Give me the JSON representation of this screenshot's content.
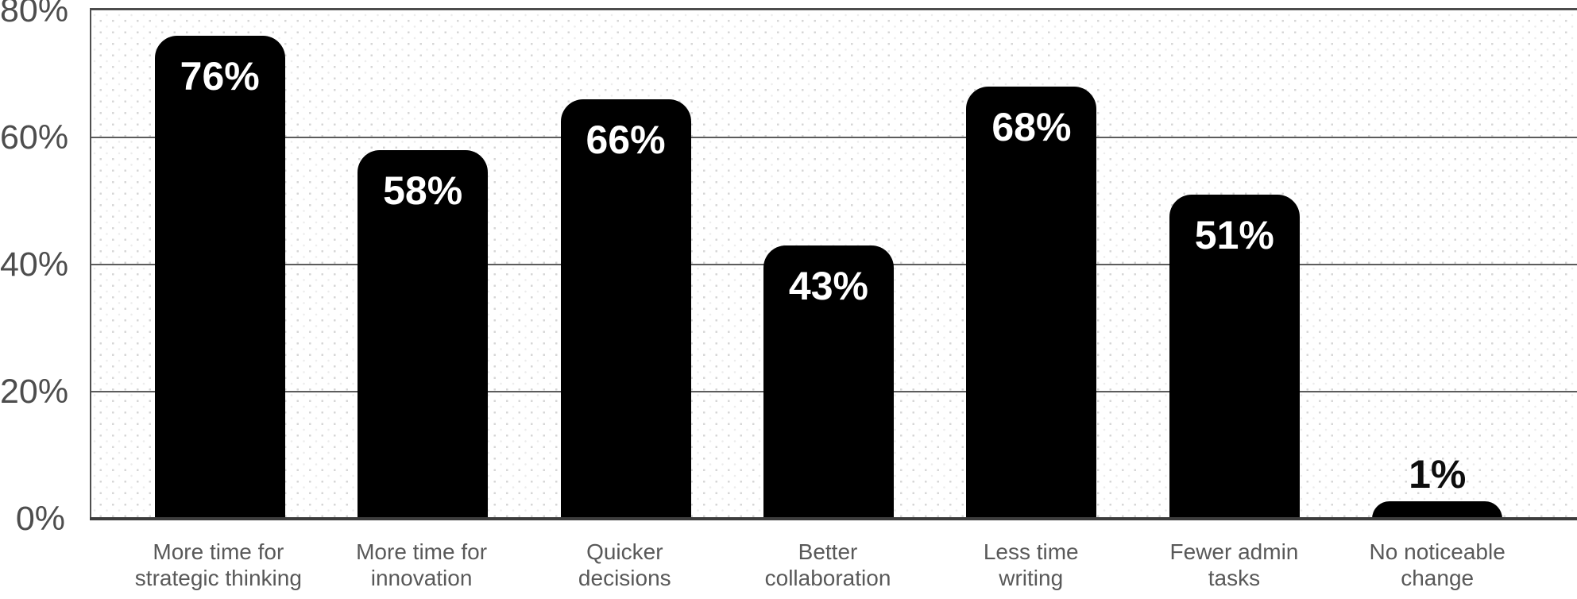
{
  "chart_data": {
    "type": "bar",
    "title": "",
    "xlabel": "",
    "ylabel": "",
    "categories": [
      [
        "More time for",
        "strategic thinking"
      ],
      [
        "More time for",
        "innovation"
      ],
      [
        "Quicker",
        "decisions"
      ],
      [
        "Better",
        "collaboration"
      ],
      [
        "Less time",
        "writing"
      ],
      [
        "Fewer admin",
        "tasks"
      ],
      [
        "No noticeable",
        "change"
      ]
    ],
    "values": [
      76,
      58,
      66,
      43,
      68,
      51,
      1
    ],
    "value_labels": [
      "76%",
      "58%",
      "66%",
      "43%",
      "68%",
      "51%",
      "1%"
    ],
    "label_position": [
      "inside",
      "inside",
      "inside",
      "inside",
      "inside",
      "inside",
      "above"
    ],
    "ylim": [
      0,
      80
    ],
    "yticks": [
      {
        "value": 0,
        "label": "0%"
      },
      {
        "value": 20,
        "label": "20%"
      },
      {
        "value": 40,
        "label": "40%"
      },
      {
        "value": 60,
        "label": "60%"
      },
      {
        "value": 80,
        "label": "80%"
      }
    ],
    "gridlines": [
      20,
      40,
      60
    ],
    "grid": "horizontal-only",
    "legend": "none",
    "colors": {
      "bar": "#000000",
      "value_label_inside": "#ffffff",
      "value_label_above": "#0d0d0d",
      "axis_line": "#3d3d3d",
      "plot_border": "#4c4c4c",
      "gridline": "#5c5c5c",
      "tick_text": "#4d4d4d",
      "category_text": "#595959",
      "dot_pattern": "#d6d6d6"
    }
  }
}
